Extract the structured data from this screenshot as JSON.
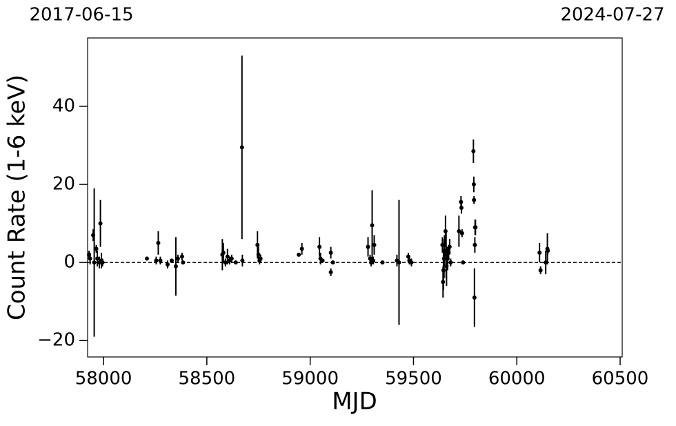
{
  "chart_data": {
    "type": "errorbar",
    "xlabel": "MJD",
    "ylabel": "Count Rate (1-6 keV)",
    "annotations": [
      "2017-06-15",
      "2024-07-27"
    ],
    "xlim": [
      57923,
      60510
    ],
    "ylim": [
      -24.2,
      57.5
    ],
    "xticks": [
      58000,
      58500,
      59000,
      59500,
      60000,
      60500
    ],
    "yticks": [
      {
        "value": -20,
        "label": "−20"
      },
      0,
      20,
      40
    ],
    "hline": 0,
    "color": "#000000",
    "series": [
      {
        "x": [
          57930,
          57935,
          57950,
          57955,
          57965,
          57970,
          57980,
          57985,
          57990,
          57995,
          58210,
          58255,
          58265,
          58275,
          58310,
          58330,
          58350,
          58360,
          58380,
          58385,
          58575,
          58580,
          58590,
          58600,
          58610,
          58620,
          58640,
          58670,
          58672,
          58745,
          58750,
          58755,
          58760,
          58945,
          58960,
          59045,
          59050,
          59060,
          59100,
          59100,
          59110,
          59280,
          59290,
          59295,
          59300,
          59305,
          59310,
          59350,
          59420,
          59430,
          59475,
          59480,
          59490,
          59640,
          59643,
          59645,
          59648,
          59650,
          59655,
          59658,
          59660,
          59665,
          59670,
          59675,
          59680,
          59720,
          59730,
          59732,
          59735,
          59740,
          59790,
          59792,
          59793,
          59795,
          59797,
          59798,
          59800,
          60110,
          60115,
          60140,
          60148,
          60150
        ],
        "values": [
          2,
          1,
          7,
          0,
          3.5,
          1,
          0,
          10,
          0.5,
          0,
          1,
          0.5,
          5,
          0.5,
          -0.5,
          0.5,
          -1,
          1,
          1.5,
          0,
          2,
          2.5,
          0,
          1.5,
          0.5,
          1,
          0,
          29.5,
          0.5,
          4.5,
          2,
          0.5,
          1,
          2,
          3.5,
          4,
          1,
          0.5,
          2.5,
          -2.5,
          0,
          4,
          1,
          0,
          9.5,
          0.5,
          4.5,
          0,
          0.5,
          0,
          1.5,
          0.5,
          0,
          4.5,
          -5,
          -2,
          1,
          3,
          8,
          2,
          -1,
          1,
          2.5,
          4,
          0,
          8,
          15.5,
          14,
          7.5,
          0,
          28.5,
          20,
          16,
          -9,
          4.5,
          9,
          9,
          2.5,
          -2,
          0,
          3.5,
          3
        ],
        "errors": [
          1,
          1.5,
          1.5,
          19,
          1,
          2,
          1.5,
          6,
          2,
          1,
          0.5,
          1,
          3,
          1,
          1,
          0.5,
          7.5,
          1,
          1,
          0.5,
          4,
          2.5,
          1,
          2,
          1,
          1,
          0.5,
          23.5,
          1.5,
          3.5,
          2,
          1,
          1,
          0.5,
          1.5,
          2.5,
          1.5,
          0.5,
          1.5,
          1,
          0.5,
          2.5,
          1,
          1,
          9,
          1,
          2.5,
          0.5,
          1.5,
          16,
          1,
          1,
          1,
          2,
          4,
          5,
          5,
          4,
          4,
          6,
          5,
          3,
          2,
          2,
          1,
          4,
          1.5,
          1.5,
          1,
          0.5,
          3,
          2,
          1,
          7.5,
          2,
          2,
          2,
          2.5,
          1,
          3,
          4,
          1
        ]
      }
    ]
  }
}
